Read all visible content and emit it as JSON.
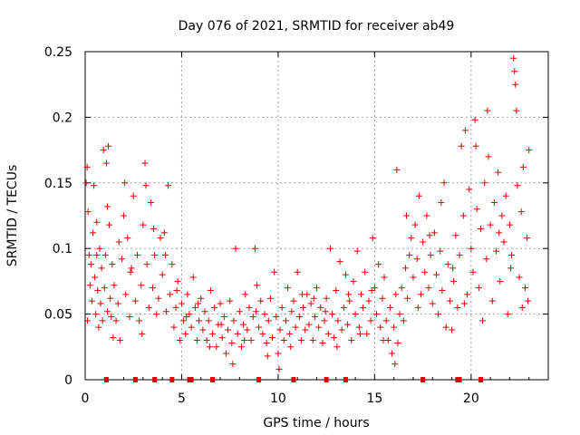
{
  "chart_data": {
    "type": "scatter",
    "title": "Day 076 of 2021, SRMTID for receiver ab49",
    "xlabel": "GPS time / hours",
    "ylabel": "SRMTID / TECUs",
    "xlim": [
      0,
      24
    ],
    "ylim": [
      0,
      0.25
    ],
    "xticks": [
      0,
      5,
      10,
      15,
      20
    ],
    "yticks": [
      0,
      0.05,
      0.1,
      0.15,
      0.2,
      0.25
    ],
    "xtick_labels": [
      "0",
      "5",
      "10",
      "15",
      "20"
    ],
    "ytick_labels": [
      "0",
      "0.05",
      "0.1",
      "0.15",
      "0.2",
      "0.25"
    ],
    "grid": true,
    "marker": "+",
    "color": "#e00000",
    "series": [
      {
        "name": "SRMTID",
        "points": [
          [
            0.05,
            0.15
          ],
          [
            0.1,
            0.162
          ],
          [
            0.15,
            0.128
          ],
          [
            0.2,
            0.095
          ],
          [
            0.25,
            0.072
          ],
          [
            0.3,
            0.088
          ],
          [
            0.35,
            0.06
          ],
          [
            0.4,
            0.112
          ],
          [
            0.45,
            0.148
          ],
          [
            0.5,
            0.078
          ],
          [
            0.55,
            0.05
          ],
          [
            0.6,
            0.095
          ],
          [
            0.65,
            0.068
          ],
          [
            0.7,
            0.04
          ],
          [
            0.75,
            0.1
          ],
          [
            0.8,
            0.058
          ],
          [
            0.85,
            0.085
          ],
          [
            0.9,
            0.045
          ],
          [
            0.95,
            0.175
          ],
          [
            1.0,
            0.07
          ],
          [
            1.05,
            0.095
          ],
          [
            1.1,
            0.165
          ],
          [
            1.15,
            0.132
          ],
          [
            1.2,
            0.178
          ],
          [
            1.25,
            0.118
          ],
          [
            1.3,
            0.062
          ],
          [
            1.35,
            0.048
          ],
          [
            1.4,
            0.088
          ],
          [
            1.45,
            0.032
          ],
          [
            1.5,
            0.072
          ],
          [
            1.6,
            0.045
          ],
          [
            1.7,
            0.058
          ],
          [
            1.8,
            0.03
          ],
          [
            1.9,
            0.092
          ],
          [
            2.0,
            0.125
          ],
          [
            2.05,
            0.15
          ],
          [
            2.1,
            0.065
          ],
          [
            2.2,
            0.108
          ],
          [
            2.3,
            0.048
          ],
          [
            2.4,
            0.085
          ],
          [
            2.5,
            0.14
          ],
          [
            2.6,
            0.06
          ],
          [
            2.7,
            0.095
          ],
          [
            2.8,
            0.045
          ],
          [
            2.9,
            0.072
          ],
          [
            3.0,
            0.118
          ],
          [
            3.1,
            0.165
          ],
          [
            3.15,
            0.148
          ],
          [
            3.2,
            0.088
          ],
          [
            3.3,
            0.055
          ],
          [
            3.4,
            0.135
          ],
          [
            3.5,
            0.07
          ],
          [
            3.6,
            0.095
          ],
          [
            3.7,
            0.05
          ],
          [
            3.8,
            0.062
          ],
          [
            3.9,
            0.108
          ],
          [
            4.0,
            0.08
          ],
          [
            4.1,
            0.112
          ],
          [
            4.2,
            0.052
          ],
          [
            4.3,
            0.148
          ],
          [
            4.4,
            0.065
          ],
          [
            4.5,
            0.088
          ],
          [
            4.6,
            0.04
          ],
          [
            4.7,
            0.055
          ],
          [
            4.8,
            0.075
          ],
          [
            4.9,
            0.03
          ],
          [
            5.0,
            0.058
          ],
          [
            5.1,
            0.045
          ],
          [
            5.2,
            0.035
          ],
          [
            5.3,
            0.065
          ],
          [
            5.4,
            0.05
          ],
          [
            5.5,
            0.04
          ],
          [
            5.6,
            0.078
          ],
          [
            5.7,
            0.055
          ],
          [
            5.8,
            0.03
          ],
          [
            5.9,
            0.045
          ],
          [
            6.0,
            0.062
          ],
          [
            6.1,
            0.038
          ],
          [
            6.2,
            0.052
          ],
          [
            6.3,
            0.03
          ],
          [
            6.4,
            0.045
          ],
          [
            6.5,
            0.068
          ],
          [
            6.6,
            0.035
          ],
          [
            6.7,
            0.055
          ],
          [
            6.8,
            0.025
          ],
          [
            6.9,
            0.042
          ],
          [
            7.0,
            0.058
          ],
          [
            7.1,
            0.032
          ],
          [
            7.2,
            0.048
          ],
          [
            7.3,
            0.02
          ],
          [
            7.4,
            0.038
          ],
          [
            7.5,
            0.06
          ],
          [
            7.6,
            0.028
          ],
          [
            7.7,
            0.045
          ],
          [
            7.8,
            0.1
          ],
          [
            7.9,
            0.035
          ],
          [
            8.0,
            0.052
          ],
          [
            8.1,
            0.025
          ],
          [
            8.2,
            0.042
          ],
          [
            8.3,
            0.065
          ],
          [
            8.4,
            0.038
          ],
          [
            8.5,
            0.055
          ],
          [
            8.6,
            0.03
          ],
          [
            8.7,
            0.048
          ],
          [
            8.8,
            0.1
          ],
          [
            8.9,
            0.072
          ],
          [
            9.0,
            0.04
          ],
          [
            9.1,
            0.06
          ],
          [
            9.2,
            0.035
          ],
          [
            9.3,
            0.05
          ],
          [
            9.4,
            0.028
          ],
          [
            9.5,
            0.045
          ],
          [
            9.6,
            0.062
          ],
          [
            9.7,
            0.032
          ],
          [
            9.8,
            0.082
          ],
          [
            9.9,
            0.048
          ],
          [
            10.0,
            0.02
          ],
          [
            10.1,
            0.038
          ],
          [
            10.2,
            0.055
          ],
          [
            10.3,
            0.03
          ],
          [
            10.4,
            0.045
          ],
          [
            10.5,
            0.07
          ],
          [
            10.6,
            0.035
          ],
          [
            10.7,
            0.052
          ],
          [
            10.8,
            0.06
          ],
          [
            10.9,
            0.04
          ],
          [
            11.0,
            0.082
          ],
          [
            11.1,
            0.048
          ],
          [
            11.2,
            0.03
          ],
          [
            11.3,
            0.055
          ],
          [
            11.4,
            0.038
          ],
          [
            11.5,
            0.065
          ],
          [
            11.6,
            0.042
          ],
          [
            11.7,
            0.058
          ],
          [
            11.8,
            0.03
          ],
          [
            11.9,
            0.048
          ],
          [
            12.0,
            0.07
          ],
          [
            12.1,
            0.04
          ],
          [
            12.2,
            0.055
          ],
          [
            12.3,
            0.028
          ],
          [
            12.4,
            0.045
          ],
          [
            12.5,
            0.062
          ],
          [
            12.6,
            0.035
          ],
          [
            12.7,
            0.1
          ],
          [
            12.8,
            0.05
          ],
          [
            12.9,
            0.032
          ],
          [
            13.0,
            0.068
          ],
          [
            13.1,
            0.045
          ],
          [
            13.2,
            0.09
          ],
          [
            13.3,
            0.038
          ],
          [
            13.4,
            0.055
          ],
          [
            13.5,
            0.08
          ],
          [
            13.6,
            0.042
          ],
          [
            13.7,
            0.06
          ],
          [
            13.8,
            0.03
          ],
          [
            13.9,
            0.075
          ],
          [
            14.0,
            0.05
          ],
          [
            14.1,
            0.098
          ],
          [
            14.2,
            0.04
          ],
          [
            14.3,
            0.065
          ],
          [
            14.4,
            0.055
          ],
          [
            14.5,
            0.082
          ],
          [
            14.6,
            0.035
          ],
          [
            14.7,
            0.06
          ],
          [
            14.8,
            0.045
          ],
          [
            14.9,
            0.108
          ],
          [
            15.0,
            0.07
          ],
          [
            15.1,
            0.05
          ],
          [
            15.2,
            0.088
          ],
          [
            15.3,
            0.04
          ],
          [
            15.4,
            0.062
          ],
          [
            15.5,
            0.078
          ],
          [
            15.6,
            0.045
          ],
          [
            15.7,
            0.03
          ],
          [
            15.8,
            0.055
          ],
          [
            15.9,
            0.02
          ],
          [
            16.0,
            0.04
          ],
          [
            16.1,
            0.065
          ],
          [
            16.15,
            0.16
          ],
          [
            16.2,
            0.028
          ],
          [
            16.3,
            0.05
          ],
          [
            16.4,
            0.07
          ],
          [
            16.5,
            0.045
          ],
          [
            16.6,
            0.085
          ],
          [
            16.7,
            0.062
          ],
          [
            16.8,
            0.095
          ],
          [
            16.9,
            0.108
          ],
          [
            17.0,
            0.078
          ],
          [
            17.1,
            0.118
          ],
          [
            17.2,
            0.092
          ],
          [
            17.3,
            0.14
          ],
          [
            17.4,
            0.065
          ],
          [
            17.5,
            0.105
          ],
          [
            17.6,
            0.082
          ],
          [
            17.7,
            0.125
          ],
          [
            17.8,
            0.07
          ],
          [
            17.9,
            0.095
          ],
          [
            18.0,
            0.058
          ],
          [
            18.1,
            0.112
          ],
          [
            18.2,
            0.08
          ],
          [
            18.3,
            0.05
          ],
          [
            18.4,
            0.098
          ],
          [
            18.5,
            0.068
          ],
          [
            18.6,
            0.15
          ],
          [
            18.7,
            0.04
          ],
          [
            18.8,
            0.088
          ],
          [
            18.9,
            0.06
          ],
          [
            19.0,
            0.038
          ],
          [
            19.1,
            0.075
          ],
          [
            19.2,
            0.11
          ],
          [
            19.3,
            0.055
          ],
          [
            19.4,
            0.095
          ],
          [
            19.5,
            0.178
          ],
          [
            19.6,
            0.125
          ],
          [
            19.7,
            0.19
          ],
          [
            19.8,
            0.065
          ],
          [
            19.9,
            0.145
          ],
          [
            20.0,
            0.1
          ],
          [
            20.1,
            0.082
          ],
          [
            20.2,
            0.198
          ],
          [
            20.3,
            0.13
          ],
          [
            20.4,
            0.07
          ],
          [
            20.5,
            0.115
          ],
          [
            20.6,
            0.045
          ],
          [
            20.7,
            0.15
          ],
          [
            20.8,
            0.092
          ],
          [
            20.9,
            0.17
          ],
          [
            21.0,
            0.118
          ],
          [
            21.1,
            0.06
          ],
          [
            21.2,
            0.135
          ],
          [
            21.3,
            0.098
          ],
          [
            21.4,
            0.158
          ],
          [
            21.5,
            0.075
          ],
          [
            21.6,
            0.125
          ],
          [
            21.7,
            0.105
          ],
          [
            21.8,
            0.14
          ],
          [
            21.9,
            0.05
          ],
          [
            22.0,
            0.118
          ],
          [
            22.1,
            0.095
          ],
          [
            22.2,
            0.245
          ],
          [
            22.25,
            0.235
          ],
          [
            22.3,
            0.225
          ],
          [
            22.35,
            0.205
          ],
          [
            22.4,
            0.148
          ],
          [
            22.5,
            0.078
          ],
          [
            22.6,
            0.128
          ],
          [
            22.7,
            0.162
          ],
          [
            22.8,
            0.07
          ],
          [
            22.9,
            0.108
          ],
          [
            23.0,
            0.175
          ],
          [
            0.12,
            0.045
          ],
          [
            0.6,
            0.12
          ],
          [
            1.15,
            0.052
          ],
          [
            1.75,
            0.105
          ],
          [
            2.35,
            0.082
          ],
          [
            2.95,
            0.035
          ],
          [
            3.55,
            0.115
          ],
          [
            4.15,
            0.095
          ],
          [
            4.75,
            0.068
          ],
          [
            5.25,
            0.048
          ],
          [
            5.85,
            0.058
          ],
          [
            6.45,
            0.025
          ],
          [
            7.05,
            0.042
          ],
          [
            7.65,
            0.012
          ],
          [
            8.25,
            0.03
          ],
          [
            8.85,
            0.052
          ],
          [
            9.45,
            0.018
          ],
          [
            10.05,
            0.008
          ],
          [
            10.65,
            0.025
          ],
          [
            11.25,
            0.065
          ],
          [
            11.85,
            0.062
          ],
          [
            12.45,
            0.052
          ],
          [
            13.05,
            0.025
          ],
          [
            13.65,
            0.065
          ],
          [
            14.25,
            0.035
          ],
          [
            14.85,
            0.068
          ],
          [
            15.45,
            0.03
          ],
          [
            16.05,
            0.012
          ],
          [
            16.65,
            0.125
          ],
          [
            17.25,
            0.055
          ],
          [
            17.85,
            0.11
          ],
          [
            18.45,
            0.135
          ],
          [
            19.05,
            0.085
          ],
          [
            19.65,
            0.058
          ],
          [
            20.25,
            0.178
          ],
          [
            20.85,
            0.205
          ],
          [
            21.45,
            0.112
          ],
          [
            22.05,
            0.085
          ],
          [
            22.65,
            0.055
          ],
          [
            22.95,
            0.06
          ]
        ]
      }
    ],
    "bottom_markers_hours": [
      1.1,
      2.6,
      3.6,
      4.5,
      5.4,
      5.5,
      6.6,
      9.0,
      10.8,
      12.5,
      13.5,
      17.5,
      19.3,
      19.4,
      20.5
    ]
  }
}
